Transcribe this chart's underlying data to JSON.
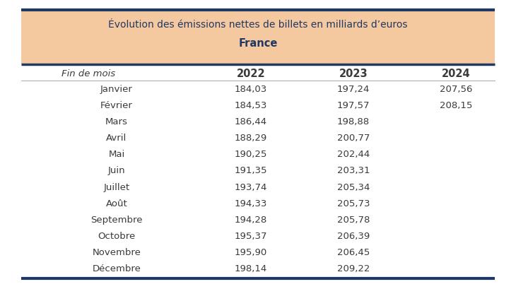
{
  "title_line1": "Évolution des émissions nettes de billets en milliards d’euros",
  "title_line2": "France",
  "header_bg_color": "#F5C9A0",
  "header_border_color": "#1F3864",
  "col_header": "Fin de mois",
  "years": [
    "2022",
    "2023",
    "2024"
  ],
  "months": [
    "Janvier",
    "Février",
    "Mars",
    "Avril",
    "Mai",
    "Juin",
    "Juillet",
    "Août",
    "Septembre",
    "Octobre",
    "Novembre",
    "Décembre"
  ],
  "data_2022": [
    "184,03",
    "184,53",
    "186,44",
    "188,29",
    "190,25",
    "191,35",
    "193,74",
    "194,33",
    "194,28",
    "195,37",
    "195,90",
    "198,14"
  ],
  "data_2023": [
    "197,24",
    "197,57",
    "198,88",
    "200,77",
    "202,44",
    "203,31",
    "205,34",
    "205,73",
    "205,78",
    "206,39",
    "206,45",
    "209,22"
  ],
  "data_2024": [
    "207,56",
    "208,15",
    "",
    "",
    "",
    "",
    "",
    "",
    "",
    "",
    "",
    ""
  ],
  "text_color": "#1F3864",
  "body_text_color": "#3a3a3a",
  "border_color": "#1F3864",
  "title1_fontsize": 10.0,
  "title2_fontsize": 10.5,
  "header_col_fontsize": 9.5,
  "year_fontsize": 10.5,
  "data_fontsize": 9.5
}
